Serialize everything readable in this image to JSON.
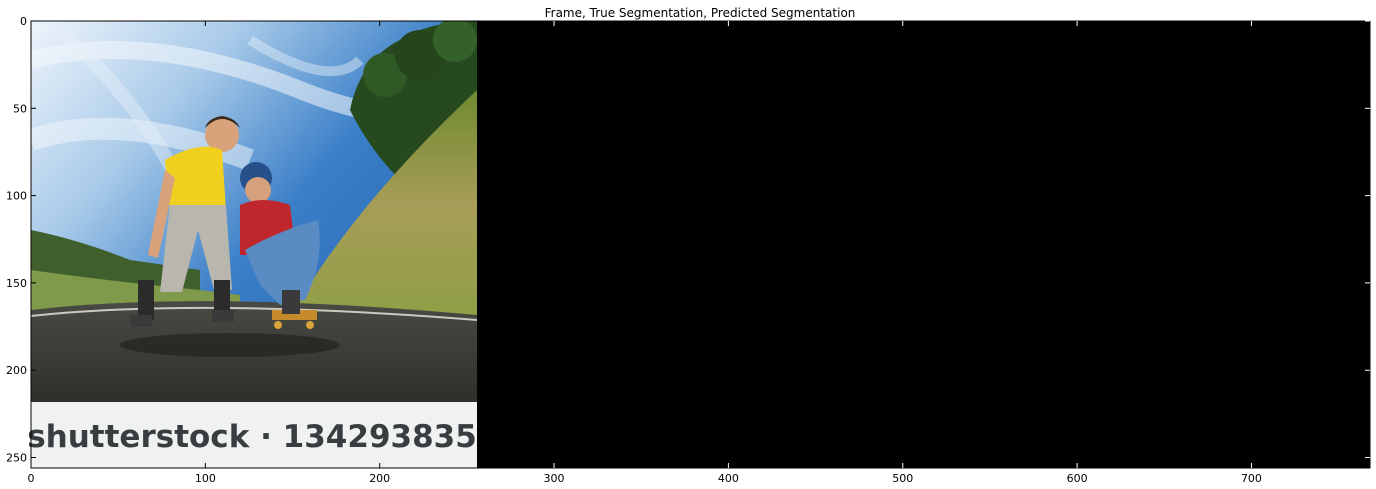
{
  "figure": {
    "title": "Frame, True Segmentation, Predicted Segmentation",
    "watermark_text": "shutterstock · 134293835",
    "image_extent": {
      "x": [
        0,
        768
      ],
      "y": [
        256,
        0
      ]
    },
    "frame_width": 256,
    "colors": {
      "sky": "#3d86cf",
      "road": "#3a3a35",
      "grass": "#8d9a44",
      "strip_bg": "#eff2f0",
      "segmentation_panels": "#000000"
    },
    "x_ticks": [
      "0",
      "100",
      "200",
      "300",
      "400",
      "500",
      "600",
      "700"
    ],
    "x_tick_values": [
      0,
      100,
      200,
      300,
      400,
      500,
      600,
      700
    ],
    "y_ticks": [
      "0",
      "50",
      "100",
      "150",
      "200",
      "250"
    ],
    "y_tick_values": [
      0,
      50,
      100,
      150,
      200,
      250
    ]
  }
}
